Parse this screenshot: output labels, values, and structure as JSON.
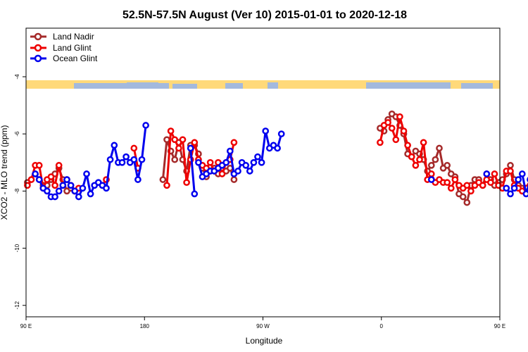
{
  "colors": {
    "land_nadir": "#a52a2a",
    "land_glint": "#ee0000",
    "ocean_glint": "#0000ee",
    "strip_land": "#ffd97a",
    "strip_ocean": "#a3b9dd"
  },
  "chart_data": {
    "type": "line",
    "title": "52.5N-57.5N August (Ver 10)   2015-01-01 to 2020-12-18",
    "xlabel": "Longitude",
    "ylabel": "XCO2 - MLO trend (ppm)",
    "xlim": [
      90,
      450
    ],
    "ylim": [
      -12.4,
      -2.3
    ],
    "x_ticks": [
      {
        "value": 90,
        "label": "90 E"
      },
      {
        "value": 180,
        "label": "180"
      },
      {
        "value": 270,
        "label": "90 W"
      },
      {
        "value": 360,
        "label": "0"
      },
      {
        "value": 450,
        "label": "90 E"
      },
      {
        "value": 540,
        "label": "180"
      }
    ],
    "y_ticks": [
      {
        "value": -4,
        "label": "-4"
      },
      {
        "value": -6,
        "label": "-6"
      },
      {
        "value": -8,
        "label": "-8"
      },
      {
        "value": -10,
        "label": "-10"
      },
      {
        "value": -12,
        "label": "-12"
      }
    ],
    "legend": [
      "Land Nadir",
      "Land Glint",
      "Ocean Glint"
    ],
    "series": [
      {
        "name": "Land Nadir",
        "segments": [
          [
            [
              91,
              -7.7
            ],
            [
              97,
              -7.4
            ],
            [
              100,
              -7.6
            ],
            [
              103,
              -7.8
            ],
            [
              106,
              -7.8
            ],
            [
              109,
              -7.6
            ],
            [
              112,
              -7.4
            ],
            [
              115,
              -7.2
            ],
            [
              118,
              -7.6
            ],
            [
              121,
              -8.0
            ],
            [
              124,
              -7.9
            ],
            [
              127,
              -8.0
            ]
          ],
          [
            [
              194,
              -7.6
            ],
            [
              197,
              -6.2
            ],
            [
              200,
              -6.6
            ],
            [
              203,
              -6.9
            ],
            [
              206,
              -6.3
            ],
            [
              209,
              -6.9
            ],
            [
              212,
              -7.3
            ],
            [
              215,
              -6.4
            ],
            [
              218,
              -6.4
            ],
            [
              221,
              -6.7
            ],
            [
              224,
              -7.2
            ],
            [
              227,
              -7.5
            ],
            [
              230,
              -7.3
            ],
            [
              233,
              -7.2
            ],
            [
              236,
              -7.4
            ],
            [
              239,
              -7.2
            ],
            [
              242,
              -7.3
            ],
            [
              245,
              -7.2
            ],
            [
              248,
              -7.6
            ]
          ],
          [
            [
              359,
              -5.8
            ],
            [
              362,
              -5.9
            ],
            [
              365,
              -5.5
            ],
            [
              368,
              -5.3
            ],
            [
              371,
              -5.4
            ],
            [
              374,
              -5.7
            ],
            [
              377,
              -6.0
            ],
            [
              380,
              -6.7
            ],
            [
              383,
              -6.8
            ],
            [
              386,
              -6.6
            ],
            [
              389,
              -6.7
            ],
            [
              392,
              -6.9
            ],
            [
              395,
              -7.3
            ],
            [
              398,
              -7.1
            ],
            [
              401,
              -6.9
            ],
            [
              404,
              -6.5
            ],
            [
              407,
              -7.2
            ],
            [
              410,
              -7.1
            ],
            [
              413,
              -7.4
            ],
            [
              416,
              -7.5
            ],
            [
              419,
              -8.1
            ],
            [
              422,
              -8.2
            ],
            [
              425,
              -8.4
            ],
            [
              428,
              -7.8
            ],
            [
              431,
              -7.6
            ],
            [
              434,
              -7.6
            ],
            [
              437,
              -7.8
            ],
            [
              440,
              -7.4
            ],
            [
              443,
              -7.6
            ],
            [
              446,
              -7.8
            ],
            [
              449,
              -7.7
            ],
            [
              452,
              -7.6
            ],
            [
              455,
              -7.4
            ],
            [
              458,
              -7.1
            ],
            [
              461,
              -7.6
            ],
            [
              464,
              -7.8
            ],
            [
              467,
              -7.9
            ],
            [
              470,
              -8.0
            ],
            [
              473,
              -7.8
            ]
          ]
        ]
      },
      {
        "name": "Land Glint",
        "segments": [
          [
            [
              91,
              -7.8
            ],
            [
              94,
              -7.6
            ],
            [
              97,
              -7.1
            ],
            [
              100,
              -7.1
            ],
            [
              103,
              -7.9
            ],
            [
              106,
              -7.6
            ],
            [
              109,
              -7.5
            ],
            [
              112,
              -7.8
            ],
            [
              115,
              -7.1
            ],
            [
              118,
              -7.8
            ],
            [
              121,
              -7.6
            ],
            [
              124,
              -7.8
            ],
            [
              127,
              -8.0
            ],
            [
              130,
              -7.9
            ]
          ],
          [
            [
              148,
              -7.8
            ],
            [
              151,
              -7.6
            ]
          ],
          [
            [
              172,
              -6.5
            ],
            [
              175,
              -7.2
            ]
          ],
          [
            [
              197,
              -7.8
            ],
            [
              200,
              -5.9
            ],
            [
              203,
              -6.2
            ],
            [
              206,
              -6.5
            ],
            [
              209,
              -6.2
            ],
            [
              212,
              -7.7
            ],
            [
              215,
              -6.9
            ],
            [
              218,
              -6.3
            ],
            [
              221,
              -6.9
            ],
            [
              224,
              -7.1
            ],
            [
              227,
              -7.2
            ],
            [
              230,
              -7.0
            ],
            [
              233,
              -7.3
            ],
            [
              236,
              -7.0
            ],
            [
              239,
              -7.4
            ],
            [
              242,
              -7.0
            ],
            [
              245,
              -6.9
            ],
            [
              248,
              -6.3
            ]
          ],
          [
            [
              359,
              -6.3
            ],
            [
              362,
              -5.7
            ],
            [
              365,
              -5.6
            ],
            [
              368,
              -5.8
            ],
            [
              371,
              -6.2
            ],
            [
              374,
              -5.4
            ],
            [
              377,
              -5.9
            ],
            [
              380,
              -6.4
            ],
            [
              383,
              -6.8
            ],
            [
              386,
              -7.1
            ],
            [
              389,
              -6.9
            ],
            [
              392,
              -6.3
            ],
            [
              395,
              -7.6
            ],
            [
              398,
              -7.4
            ],
            [
              401,
              -7.7
            ],
            [
              404,
              -7.6
            ],
            [
              407,
              -7.7
            ],
            [
              410,
              -7.7
            ],
            [
              413,
              -7.9
            ],
            [
              416,
              -7.6
            ],
            [
              419,
              -7.8
            ],
            [
              422,
              -7.9
            ],
            [
              425,
              -7.8
            ],
            [
              428,
              -8.0
            ],
            [
              431,
              -7.8
            ],
            [
              434,
              -7.7
            ],
            [
              437,
              -7.8
            ],
            [
              440,
              -7.6
            ],
            [
              443,
              -7.7
            ],
            [
              446,
              -7.4
            ],
            [
              449,
              -7.8
            ],
            [
              452,
              -7.9
            ],
            [
              455,
              -7.3
            ],
            [
              458,
              -7.3
            ],
            [
              461,
              -7.8
            ],
            [
              464,
              -7.9
            ],
            [
              467,
              -8.0
            ],
            [
              470,
              -7.9
            ],
            [
              473,
              -7.8
            ]
          ]
        ]
      },
      {
        "name": "Ocean Glint",
        "segments": [
          [
            [
              97,
              -7.4
            ],
            [
              100,
              -7.6
            ],
            [
              103,
              -7.9
            ],
            [
              106,
              -8.0
            ],
            [
              109,
              -8.2
            ],
            [
              112,
              -8.2
            ],
            [
              115,
              -8.0
            ],
            [
              118,
              -7.8
            ],
            [
              121,
              -7.6
            ],
            [
              124,
              -7.8
            ],
            [
              127,
              -8.0
            ],
            [
              130,
              -8.2
            ],
            [
              133,
              -7.9
            ],
            [
              136,
              -7.4
            ],
            [
              139,
              -8.1
            ],
            [
              142,
              -7.8
            ],
            [
              145,
              -7.7
            ],
            [
              148,
              -7.8
            ],
            [
              151,
              -7.9
            ],
            [
              154,
              -6.9
            ],
            [
              157,
              -6.4
            ],
            [
              160,
              -7.0
            ],
            [
              163,
              -7.0
            ],
            [
              166,
              -6.8
            ],
            [
              169,
              -7.0
            ],
            [
              172,
              -6.9
            ],
            [
              175,
              -7.6
            ],
            [
              178,
              -6.9
            ],
            [
              181,
              -5.7
            ]
          ],
          [
            [
              215,
              -6.5
            ],
            [
              218,
              -8.1
            ]
          ],
          [
            [
              221,
              -7.0
            ],
            [
              224,
              -7.5
            ],
            [
              227,
              -7.4
            ],
            [
              230,
              -7.3
            ],
            [
              233,
              -7.3
            ],
            [
              236,
              -7.2
            ],
            [
              239,
              -7.1
            ],
            [
              242,
              -7.0
            ],
            [
              245,
              -6.6
            ],
            [
              248,
              -7.4
            ],
            [
              251,
              -7.3
            ],
            [
              254,
              -7.0
            ],
            [
              257,
              -7.1
            ],
            [
              260,
              -7.3
            ],
            [
              263,
              -7.0
            ],
            [
              266,
              -6.8
            ],
            [
              269,
              -7.0
            ],
            [
              272,
              -5.9
            ],
            [
              275,
              -6.5
            ],
            [
              278,
              -6.4
            ],
            [
              281,
              -6.5
            ],
            [
              284,
              -6.0
            ]
          ],
          [
            [
              398,
              -7.6
            ]
          ],
          [
            [
              440,
              -7.4
            ]
          ],
          [
            [
              455,
              -7.9
            ],
            [
              458,
              -8.1
            ],
            [
              461,
              -7.9
            ],
            [
              464,
              -7.6
            ],
            [
              467,
              -7.4
            ],
            [
              470,
              -8.1
            ],
            [
              473,
              -7.6
            ],
            [
              476,
              -7.8
            ],
            [
              479,
              -7.7
            ],
            [
              482,
              -7.9
            ],
            [
              485,
              -7.8
            ],
            [
              488,
              -7.9
            ],
            [
              491,
              -7.8
            ]
          ]
        ]
      }
    ]
  }
}
